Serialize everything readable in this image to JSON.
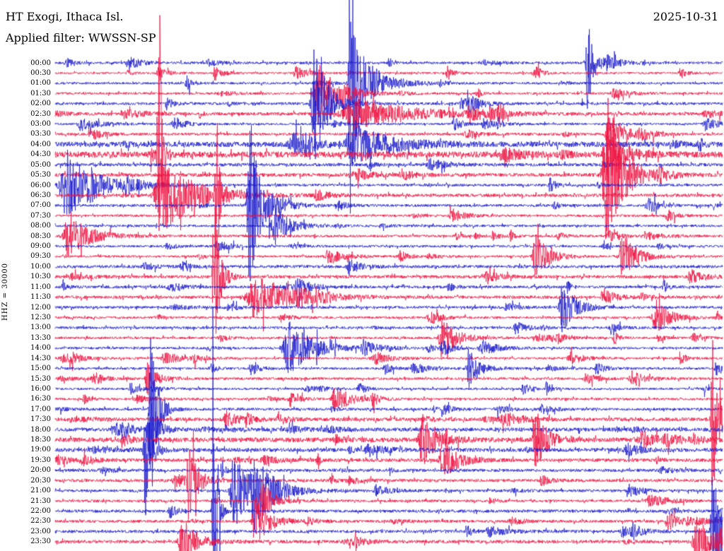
{
  "header": {
    "station": "HT Exogi, Ithaca Isl.",
    "date": "2025-10-31",
    "filter": "Applied filter: WWSSN-SP"
  },
  "chart_data": {
    "type": "line",
    "kind": "helicorder-seismogram",
    "title": "HT Exogi, Ithaca Isl.",
    "date": "2025-10-31",
    "filter": "Applied filter: WWSSN-SP",
    "channel_scale": "HHZ = 30000",
    "row_duration_minutes": 30,
    "start_time": "00:00",
    "end_time": "23:30",
    "palette": {
      "blue": "#1d1dcb",
      "red": "#ef1240",
      "text": "#000000",
      "background": "#ffffff"
    },
    "rows": [
      {
        "label": "00:00",
        "color": "blue",
        "noise": 1.2
      },
      {
        "label": "00:30",
        "color": "red",
        "noise": 1.0
      },
      {
        "label": "01:00",
        "color": "blue",
        "noise": 1.1
      },
      {
        "label": "01:30",
        "color": "red",
        "noise": 1.2
      },
      {
        "label": "02:00",
        "color": "blue",
        "noise": 1.4
      },
      {
        "label": "02:30",
        "color": "red",
        "noise": 1.5
      },
      {
        "label": "03:00",
        "color": "blue",
        "noise": 1.1
      },
      {
        "label": "03:30",
        "color": "red",
        "noise": 1.3
      },
      {
        "label": "04:00",
        "color": "blue",
        "noise": 2.6
      },
      {
        "label": "04:30",
        "color": "red",
        "noise": 3.0
      },
      {
        "label": "05:00",
        "color": "blue",
        "noise": 1.6
      },
      {
        "label": "05:30",
        "color": "red",
        "noise": 1.8
      },
      {
        "label": "06:00",
        "color": "blue",
        "noise": 1.3
      },
      {
        "label": "06:30",
        "color": "red",
        "noise": 1.6
      },
      {
        "label": "07:00",
        "color": "blue",
        "noise": 1.3
      },
      {
        "label": "07:30",
        "color": "red",
        "noise": 1.2
      },
      {
        "label": "08:00",
        "color": "blue",
        "noise": 1.2
      },
      {
        "label": "08:30",
        "color": "red",
        "noise": 1.3
      },
      {
        "label": "09:00",
        "color": "blue",
        "noise": 1.2
      },
      {
        "label": "09:30",
        "color": "red",
        "noise": 1.1
      },
      {
        "label": "10:00",
        "color": "blue",
        "noise": 1.5
      },
      {
        "label": "10:30",
        "color": "red",
        "noise": 1.6
      },
      {
        "label": "11:00",
        "color": "blue",
        "noise": 1.4
      },
      {
        "label": "11:30",
        "color": "red",
        "noise": 1.5
      },
      {
        "label": "12:00",
        "color": "blue",
        "noise": 1.3
      },
      {
        "label": "12:30",
        "color": "red",
        "noise": 1.2
      },
      {
        "label": "13:00",
        "color": "blue",
        "noise": 1.3
      },
      {
        "label": "13:30",
        "color": "red",
        "noise": 1.2
      },
      {
        "label": "14:00",
        "color": "blue",
        "noise": 1.2
      },
      {
        "label": "14:30",
        "color": "red",
        "noise": 1.1
      },
      {
        "label": "15:00",
        "color": "blue",
        "noise": 1.2
      },
      {
        "label": "15:30",
        "color": "red",
        "noise": 1.3
      },
      {
        "label": "16:00",
        "color": "blue",
        "noise": 1.1
      },
      {
        "label": "16:30",
        "color": "red",
        "noise": 1.2
      },
      {
        "label": "17:00",
        "color": "blue",
        "noise": 1.3
      },
      {
        "label": "17:30",
        "color": "red",
        "noise": 1.8
      },
      {
        "label": "18:00",
        "color": "blue",
        "noise": 1.9
      },
      {
        "label": "18:30",
        "color": "red",
        "noise": 2.3
      },
      {
        "label": "19:00",
        "color": "blue",
        "noise": 1.9
      },
      {
        "label": "19:30",
        "color": "red",
        "noise": 1.7
      },
      {
        "label": "20:00",
        "color": "blue",
        "noise": 1.5
      },
      {
        "label": "20:30",
        "color": "red",
        "noise": 1.5
      },
      {
        "label": "21:00",
        "color": "blue",
        "noise": 1.4
      },
      {
        "label": "21:30",
        "color": "red",
        "noise": 1.3
      },
      {
        "label": "22:00",
        "color": "blue",
        "noise": 1.5
      },
      {
        "label": "22:30",
        "color": "red",
        "noise": 1.4
      },
      {
        "label": "23:00",
        "color": "blue",
        "noise": 1.5
      },
      {
        "label": "23:30",
        "color": "red",
        "noise": 1.6
      }
    ],
    "events": [
      {
        "row": 0,
        "x": 0.798,
        "amp": 85,
        "w": 0.006
      },
      {
        "row": 2,
        "x": 0.442,
        "amp": 230,
        "w": 0.004
      },
      {
        "row": 2,
        "x": 0.45,
        "amp": 55,
        "w": 0.03
      },
      {
        "row": 3,
        "x": 0.394,
        "amp": 45,
        "w": 0.025
      },
      {
        "row": 4,
        "x": 0.388,
        "amp": 90,
        "w": 0.018
      },
      {
        "row": 5,
        "x": 0.45,
        "amp": 22,
        "w": 0.08
      },
      {
        "row": 7,
        "x": 0.83,
        "amp": 30,
        "w": 0.02
      },
      {
        "row": 8,
        "x": 0.45,
        "amp": 28,
        "w": 0.05
      },
      {
        "row": 9,
        "x": 0.156,
        "amp": 260,
        "w": 0.003
      },
      {
        "row": 9,
        "x": 0.826,
        "amp": 45,
        "w": 0.02
      },
      {
        "row": 11,
        "x": 0.826,
        "amp": 95,
        "w": 0.025
      },
      {
        "row": 12,
        "x": 0.018,
        "amp": 45,
        "w": 0.04
      },
      {
        "row": 13,
        "x": 0.161,
        "amp": 55,
        "w": 0.045
      },
      {
        "row": 13,
        "x": 0.242,
        "amp": 150,
        "w": 0.003
      },
      {
        "row": 14,
        "x": 0.29,
        "amp": 170,
        "w": 0.005
      },
      {
        "row": 14,
        "x": 0.295,
        "amp": 55,
        "w": 0.025
      },
      {
        "row": 16,
        "x": 0.33,
        "amp": 25,
        "w": 0.02
      },
      {
        "row": 17,
        "x": 0.02,
        "amp": 30,
        "w": 0.03
      },
      {
        "row": 19,
        "x": 0.72,
        "amp": 30,
        "w": 0.02
      },
      {
        "row": 19,
        "x": 0.85,
        "amp": 35,
        "w": 0.02
      },
      {
        "row": 21,
        "x": 0.238,
        "amp": 120,
        "w": 0.008
      },
      {
        "row": 23,
        "x": 0.3,
        "amp": 30,
        "w": 0.05
      },
      {
        "row": 24,
        "x": 0.76,
        "amp": 35,
        "w": 0.02
      },
      {
        "row": 25,
        "x": 0.9,
        "amp": 25,
        "w": 0.02
      },
      {
        "row": 27,
        "x": 0.58,
        "amp": 30,
        "w": 0.02
      },
      {
        "row": 28,
        "x": 0.35,
        "amp": 38,
        "w": 0.035
      },
      {
        "row": 30,
        "x": 0.62,
        "amp": 28,
        "w": 0.015
      },
      {
        "row": 31,
        "x": 0.138,
        "amp": 26,
        "w": 0.012
      },
      {
        "row": 33,
        "x": 0.42,
        "amp": 20,
        "w": 0.02
      },
      {
        "row": 34,
        "x": 0.143,
        "amp": 120,
        "w": 0.01
      },
      {
        "row": 35,
        "x": 0.985,
        "amp": 120,
        "w": 0.008
      },
      {
        "row": 36,
        "x": 0.14,
        "amp": 60,
        "w": 0.01
      },
      {
        "row": 37,
        "x": 0.55,
        "amp": 40,
        "w": 0.02
      },
      {
        "row": 37,
        "x": 0.72,
        "amp": 45,
        "w": 0.015
      },
      {
        "row": 38,
        "x": 0.135,
        "amp": 100,
        "w": 0.008
      },
      {
        "row": 39,
        "x": 0.58,
        "amp": 30,
        "w": 0.02
      },
      {
        "row": 41,
        "x": 0.2,
        "amp": 55,
        "w": 0.012
      },
      {
        "row": 42,
        "x": 0.267,
        "amp": 60,
        "w": 0.02
      },
      {
        "row": 42,
        "x": 0.3,
        "amp": 40,
        "w": 0.03
      },
      {
        "row": 43,
        "x": 0.31,
        "amp": 30,
        "w": 0.015
      },
      {
        "row": 44,
        "x": 0.238,
        "amp": 300,
        "w": 0.004
      },
      {
        "row": 45,
        "x": 0.3,
        "amp": 35,
        "w": 0.02
      },
      {
        "row": 46,
        "x": 0.985,
        "amp": 100,
        "w": 0.012
      },
      {
        "row": 47,
        "x": 0.19,
        "amp": 35,
        "w": 0.02
      },
      {
        "row": 47,
        "x": 0.96,
        "amp": 40,
        "w": 0.02
      }
    ]
  }
}
